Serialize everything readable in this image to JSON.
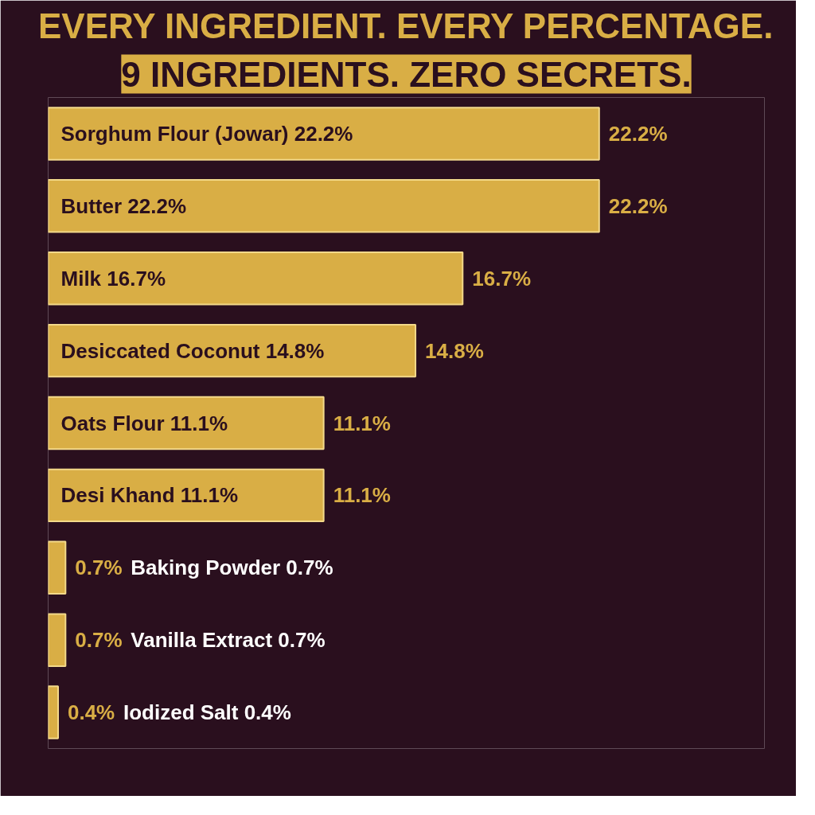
{
  "chart_data": {
    "type": "bar",
    "orientation": "horizontal",
    "title": "EVERY INGREDIENT. EVERY PERCENTAGE.",
    "subtitle": "9 INGREDIENTS. ZERO SECRETS.",
    "categories": [
      "Sorghum Flour (Jowar) 22.2%",
      "Butter 22.2%",
      "Milk 16.7%",
      "Desiccated Coconut 14.8%",
      "Oats Flour 11.1%",
      "Desi Khand 11.1%",
      "Baking Powder 0.7%",
      "Vanilla Extract 0.7%",
      "Iodized Salt 0.4%"
    ],
    "values": [
      22.2,
      22.2,
      16.7,
      14.8,
      11.1,
      11.1,
      0.7,
      0.7,
      0.4
    ],
    "value_labels": [
      "22.2%",
      "22.2%",
      "16.7%",
      "14.8%",
      "11.1%",
      "11.1%",
      "0.7%",
      "0.7%",
      "0.4%"
    ],
    "color": "#d9ae45"
  }
}
